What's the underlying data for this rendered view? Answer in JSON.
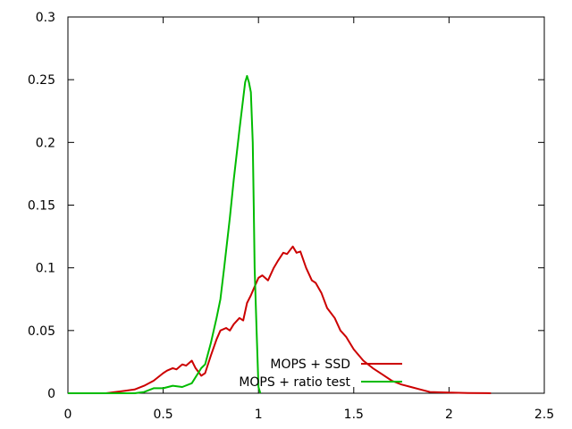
{
  "chart_data": {
    "type": "line",
    "title": "",
    "xlabel": "",
    "ylabel": "",
    "xlim": [
      0,
      2.5
    ],
    "ylim": [
      0,
      0.3
    ],
    "xticks": [
      "0",
      "0.5",
      "1",
      "1.5",
      "2",
      "2.5"
    ],
    "yticks": [
      "0",
      "0.05",
      "0.1",
      "0.15",
      "0.2",
      "0.25",
      "0.3"
    ],
    "legend_position": "bottom-right inside",
    "grid": false,
    "series": [
      {
        "name": "MOPS + SSD",
        "color": "#cc0000",
        "x": [
          0,
          0.2,
          0.25,
          0.3,
          0.35,
          0.4,
          0.45,
          0.5,
          0.52,
          0.55,
          0.57,
          0.6,
          0.62,
          0.65,
          0.67,
          0.7,
          0.72,
          0.75,
          0.78,
          0.8,
          0.83,
          0.85,
          0.87,
          0.9,
          0.92,
          0.94,
          0.96,
          0.98,
          1.0,
          1.02,
          1.05,
          1.08,
          1.1,
          1.13,
          1.15,
          1.18,
          1.2,
          1.22,
          1.25,
          1.28,
          1.3,
          1.33,
          1.36,
          1.4,
          1.43,
          1.46,
          1.5,
          1.55,
          1.6,
          1.65,
          1.7,
          1.75,
          1.8,
          1.85,
          1.9,
          2.0,
          2.1,
          2.2,
          2.22
        ],
        "y": [
          0,
          0,
          0.001,
          0.002,
          0.003,
          0.006,
          0.01,
          0.016,
          0.018,
          0.02,
          0.019,
          0.023,
          0.022,
          0.026,
          0.02,
          0.014,
          0.016,
          0.03,
          0.043,
          0.05,
          0.052,
          0.05,
          0.055,
          0.06,
          0.058,
          0.072,
          0.078,
          0.085,
          0.092,
          0.094,
          0.09,
          0.1,
          0.105,
          0.112,
          0.111,
          0.117,
          0.112,
          0.113,
          0.1,
          0.09,
          0.088,
          0.08,
          0.068,
          0.06,
          0.05,
          0.045,
          0.035,
          0.026,
          0.02,
          0.015,
          0.01,
          0.007,
          0.005,
          0.003,
          0.001,
          0.0005,
          0.0002,
          0.0001,
          0
        ]
      },
      {
        "name": "MOPS + ratio test",
        "color": "#00bb00",
        "x": [
          0,
          0.35,
          0.4,
          0.45,
          0.5,
          0.55,
          0.6,
          0.65,
          0.7,
          0.72,
          0.75,
          0.78,
          0.8,
          0.82,
          0.85,
          0.87,
          0.9,
          0.92,
          0.93,
          0.94,
          0.95,
          0.96,
          0.97,
          0.975,
          0.98,
          0.99,
          1.0,
          1.01
        ],
        "y": [
          0,
          0,
          0.001,
          0.004,
          0.004,
          0.006,
          0.005,
          0.008,
          0.02,
          0.023,
          0.04,
          0.06,
          0.075,
          0.1,
          0.14,
          0.17,
          0.21,
          0.235,
          0.248,
          0.253,
          0.248,
          0.24,
          0.2,
          0.15,
          0.1,
          0.05,
          0.005,
          0
        ]
      }
    ]
  }
}
